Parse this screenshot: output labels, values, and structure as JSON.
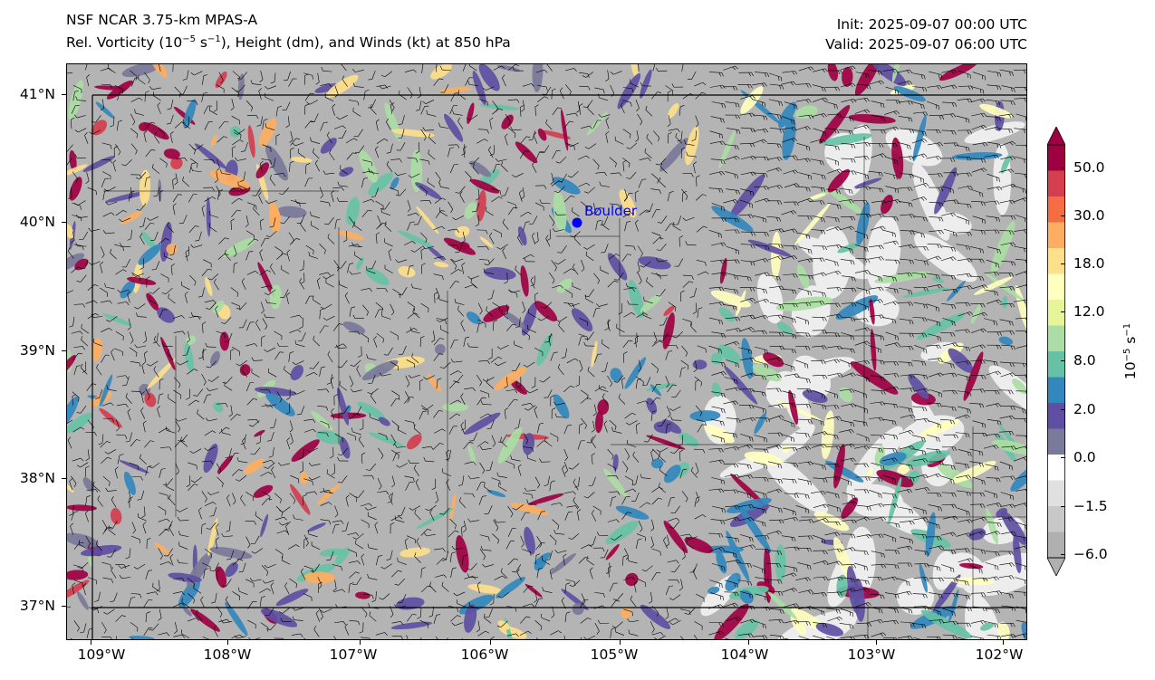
{
  "header": {
    "model": "NSF NCAR 3.75-km MPAS-A",
    "field_prefix": "Rel. Vorticity (10",
    "field_exp1": "−5",
    "field_mid": " s",
    "field_exp2": "−1",
    "field_suffix": "), Height (dm), and Winds (kt) at 850 hPa",
    "init": "Init: 2025-09-07 00:00 UTC",
    "valid": "Valid: 2025-09-07 06:00 UTC"
  },
  "map": {
    "lat_labels": [
      "41°N",
      "40°N",
      "39°N",
      "38°N",
      "37°N"
    ],
    "lon_labels": [
      "109°W",
      "108°W",
      "107°W",
      "106°W",
      "105°W",
      "104°W",
      "103°W",
      "102°W"
    ],
    "city": {
      "name": "Boulder",
      "marker_color": "#0000ff"
    },
    "border_color": "#000000"
  },
  "colorbar": {
    "units_base": "10",
    "units_exp1": "−5",
    "units_mid": " s",
    "units_exp2": "−1",
    "tick_labels": [
      "50.0",
      "30.0",
      "18.0",
      "12.0",
      "8.0",
      "2.0",
      "0.0",
      "−1.5",
      "−6.0"
    ],
    "colors": [
      "#9e0142",
      "#d53e4f",
      "#f46d43",
      "#fdae61",
      "#fee08b",
      "#ffffbf",
      "#e6f598",
      "#abdda4",
      "#66c2a5",
      "#3288bd",
      "#5e4fa2",
      "#7a7a9a",
      "#ffffff",
      "#e0e0e0",
      "#c8c8c8",
      "#b0b0b0"
    ]
  }
}
